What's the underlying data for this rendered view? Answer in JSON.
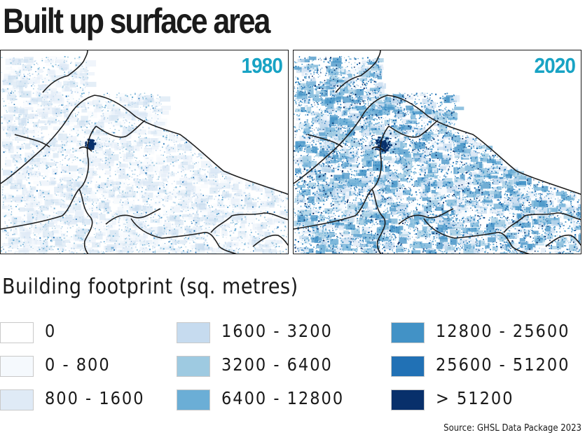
{
  "title": "Built up surface area",
  "maps": [
    {
      "year": "1980",
      "intensity": 0.3
    },
    {
      "year": "2020",
      "intensity": 1.0
    }
  ],
  "legend": {
    "title": "Building footprint (sq. metres)",
    "items": [
      {
        "label": "0",
        "color": "#ffffff"
      },
      {
        "label": "0 - 800",
        "color": "#f5f9fd"
      },
      {
        "label": "800 - 1600",
        "color": "#dfeaf6"
      },
      {
        "label": "1600 - 3200",
        "color": "#c6dbef"
      },
      {
        "label": "3200 - 6400",
        "color": "#9ecae1"
      },
      {
        "label": "6400 - 12800",
        "color": "#6baed6"
      },
      {
        "label": "12800 - 25600",
        "color": "#4292c6"
      },
      {
        "label": "25600 - 51200",
        "color": "#2171b5"
      },
      {
        "label": "> 51200",
        "color": "#08306b"
      }
    ]
  },
  "source": "Source: GHSL Data Package 2023"
}
